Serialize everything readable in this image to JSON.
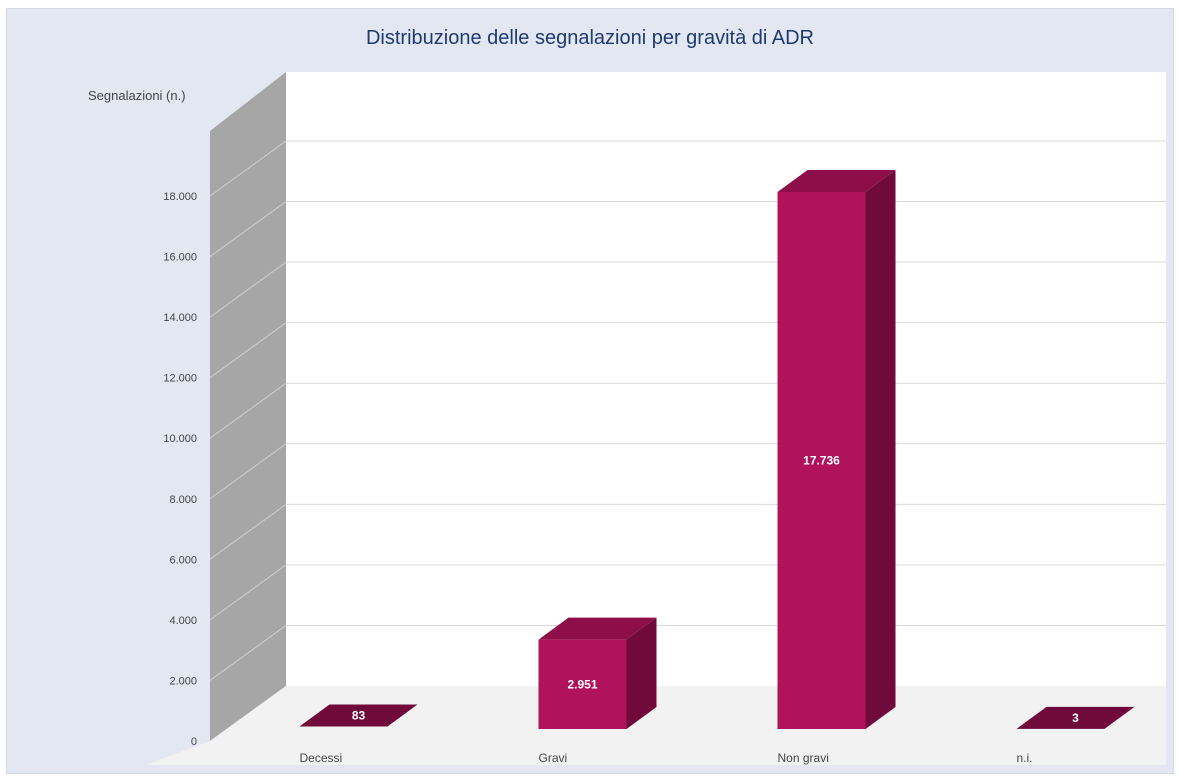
{
  "chart_data": {
    "type": "bar",
    "title": "Distribuzione delle segnalazioni per gravità di ADR",
    "ylabel": "Segnalazioni (n.)",
    "xlabel": "",
    "categories": [
      "Decessi",
      "Gravi",
      "Non gravi",
      "n.i."
    ],
    "values": [
      83,
      2951,
      17736,
      3
    ],
    "value_labels": [
      "83",
      "2.951",
      "17.736",
      "3"
    ],
    "ylim": [
      0,
      18000
    ],
    "yticks": [
      0,
      2000,
      4000,
      6000,
      8000,
      10000,
      12000,
      14000,
      16000,
      18000
    ],
    "ytick_labels": [
      "0",
      "2.000",
      "4.000",
      "6.000",
      "8.000",
      "10.000",
      "12.000",
      "14.000",
      "16.000",
      "18.000"
    ],
    "grid": true,
    "legend": "none",
    "style": "3d-column",
    "colors": {
      "bar_front": "#b0125c",
      "bar_side": "#6f0a3a",
      "bar_top": "#8e0e4a",
      "side_wall": "#a6a6a6",
      "floor": "#f2f2f2",
      "back_wall": "#ffffff",
      "grid": "#d9d9d9",
      "frame": "#e2e7f2",
      "title": "#1f3a6e"
    }
  }
}
